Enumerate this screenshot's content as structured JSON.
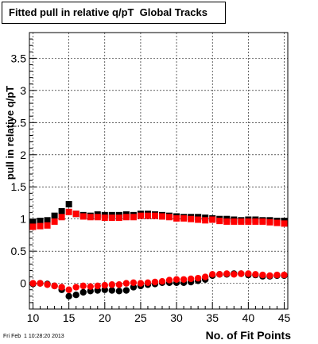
{
  "chart_data": {
    "type": "scatter",
    "title": "Fitted pull in relative q/pT  Global Tracks",
    "xlabel": "No. of Fit Points",
    "ylabel": "pull in relative q/pT",
    "xlim": [
      9.5,
      45.5
    ],
    "ylim": [
      -0.4,
      3.9
    ],
    "x_ticks": [
      "10",
      "15",
      "20",
      "25",
      "30",
      "35",
      "40",
      "45"
    ],
    "y_ticks": [
      "0",
      "0.5",
      "1",
      "1.5",
      "2",
      "2.5",
      "3",
      "3.5"
    ],
    "grid": true,
    "x": [
      10,
      11,
      12,
      13,
      14,
      15,
      16,
      17,
      18,
      19,
      20,
      21,
      22,
      23,
      24,
      25,
      26,
      27,
      28,
      29,
      30,
      31,
      32,
      33,
      34,
      35,
      36,
      37,
      38,
      39,
      40,
      41,
      42,
      43,
      44,
      45
    ],
    "series": [
      {
        "marker": "square",
        "color": "#000000",
        "values": [
          0.95,
          0.97,
          0.98,
          1.05,
          1.12,
          1.23,
          1.08,
          1.06,
          1.05,
          1.07,
          1.06,
          1.06,
          1.06,
          1.07,
          1.06,
          1.08,
          1.08,
          1.07,
          1.06,
          1.05,
          1.04,
          1.03,
          1.03,
          1.03,
          1.02,
          1.01,
          1.0,
          1.0,
          0.99,
          0.98,
          0.99,
          0.99,
          0.98,
          0.98,
          0.97,
          0.97
        ]
      },
      {
        "marker": "square",
        "color": "#ff0000",
        "values": [
          0.88,
          0.89,
          0.9,
          0.96,
          1.03,
          1.11,
          1.08,
          1.04,
          1.03,
          1.03,
          1.02,
          1.02,
          1.02,
          1.03,
          1.03,
          1.05,
          1.05,
          1.05,
          1.04,
          1.03,
          1.01,
          1.01,
          1.0,
          0.99,
          0.98,
          0.99,
          0.97,
          0.96,
          0.96,
          0.96,
          0.96,
          0.96,
          0.96,
          0.95,
          0.94,
          0.93
        ]
      },
      {
        "marker": "circle",
        "color": "#000000",
        "values": [
          -0.01,
          0.0,
          -0.01,
          -0.04,
          -0.1,
          -0.2,
          -0.18,
          -0.14,
          -0.12,
          -0.11,
          -0.1,
          -0.11,
          -0.12,
          -0.11,
          -0.06,
          -0.04,
          -0.02,
          -0.01,
          0.01,
          0.01,
          0.01,
          0.01,
          0.02,
          0.04,
          0.06,
          0.12,
          0.14,
          0.14,
          0.15,
          0.15,
          0.13,
          0.13,
          0.11,
          0.11,
          0.12,
          0.12
        ]
      },
      {
        "marker": "circle",
        "color": "#ff0000",
        "values": [
          0.0,
          0.0,
          -0.02,
          -0.04,
          -0.06,
          -0.1,
          -0.06,
          -0.04,
          -0.05,
          -0.04,
          -0.03,
          -0.02,
          -0.02,
          0.0,
          0.01,
          0.0,
          0.01,
          0.02,
          0.03,
          0.05,
          0.06,
          0.06,
          0.07,
          0.08,
          0.1,
          0.14,
          0.14,
          0.15,
          0.14,
          0.15,
          0.15,
          0.14,
          0.13,
          0.12,
          0.13,
          0.13
        ]
      }
    ]
  },
  "footer": "Fri Feb  1 10:28:20 2013"
}
